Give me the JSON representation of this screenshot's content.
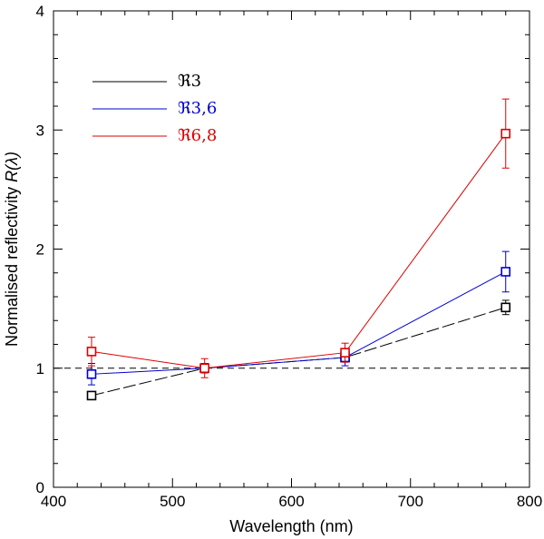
{
  "chart_data": {
    "type": "line",
    "xlabel": "Wavelength (nm)",
    "ylabel": "Normalised reflectivity R(λ)",
    "ylabel_prefix": "Normalised reflectivity ",
    "ylabel_symbol": "R(λ)",
    "xlim": [
      400,
      800
    ],
    "ylim": [
      0,
      4
    ],
    "x_ticks": [
      400,
      500,
      600,
      700,
      800
    ],
    "y_ticks": [
      0,
      1,
      2,
      3,
      4
    ],
    "x_minor_step": 20,
    "y_minor_step": 0.2,
    "reference_line": 1,
    "legend_position": "top-left",
    "series": [
      {
        "name": "ℜ3",
        "color": "#000000",
        "dash": "long-dash",
        "x": [
          432,
          527,
          645,
          780
        ],
        "y": [
          0.77,
          1.0,
          1.09,
          1.51
        ],
        "err": [
          0.02,
          0.02,
          0.02,
          0.06
        ]
      },
      {
        "name": "ℜ3,6",
        "color": "#0000cc",
        "dash": "solid",
        "x": [
          432,
          527,
          645,
          780
        ],
        "y": [
          0.95,
          1.0,
          1.09,
          1.81
        ],
        "err": [
          0.09,
          0.04,
          0.07,
          0.17
        ]
      },
      {
        "name": "ℜ6,8",
        "color": "#dd0000",
        "dash": "solid",
        "x": [
          432,
          527,
          645,
          780
        ],
        "y": [
          1.14,
          1.0,
          1.13,
          2.97
        ],
        "err": [
          0.12,
          0.08,
          0.08,
          0.29
        ]
      }
    ]
  }
}
